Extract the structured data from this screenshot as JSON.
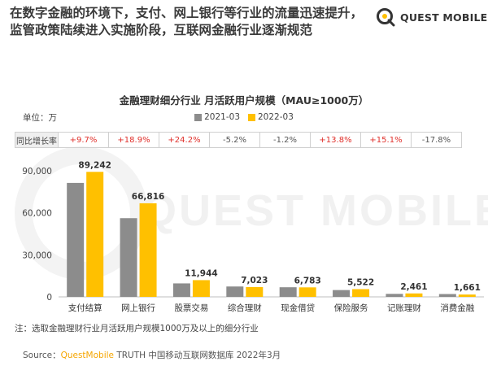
{
  "headline": {
    "line1": "在数字金融的环境下，支付、网上银行等行业的流量迅速提升，",
    "line2": "监管政策陆续进入实施阶段，互联网金融行业逐渐规范"
  },
  "brand": {
    "name": "QUEST MOBILE",
    "watermark": "QUEST MOBILE"
  },
  "colors": {
    "series_2021": "#8c8c8c",
    "series_2022": "#ffc000",
    "positive": "#e0302b",
    "negative": "#555555",
    "brand": "#f5a500"
  },
  "unit_label": "单位：万",
  "yoy": {
    "label": "同比增长率",
    "values": [
      "+9.7%",
      "+18.9%",
      "+24.2%",
      "-5.2%",
      "-1.2%",
      "+13.8%",
      "+15.1%",
      "-17.8%"
    ]
  },
  "chart_data": {
    "type": "bar",
    "title": "金融理财细分行业 月活跃用户规模（MAU≥1000万）",
    "categories": [
      "支付结算",
      "网上银行",
      "股票交易",
      "综合理财",
      "现金借贷",
      "保险服务",
      "记账理财",
      "消费金融"
    ],
    "series": [
      {
        "name": "2021-03",
        "values": [
          81350,
          56190,
          9617,
          7408,
          6865,
          4853,
          2138,
          2020
        ]
      },
      {
        "name": "2022-03",
        "values": [
          89242,
          66816,
          11944,
          7023,
          6783,
          5522,
          2461,
          1661
        ]
      }
    ],
    "data_labels": [
      "89,242",
      "66,816",
      "11,944",
      "7,023",
      "6,783",
      "5,522",
      "2,461",
      "1,661"
    ],
    "yticks": [
      "90,000",
      "60,000",
      "30,000",
      "0"
    ],
    "ytick_values": [
      90000,
      60000,
      30000,
      0
    ],
    "ylim": [
      0,
      90000
    ],
    "grid": false,
    "legend_position": "top-center"
  },
  "note": "注：选取金融理财行业月活跃用户规模1000万及以上的细分行业",
  "source": {
    "prefix": "Source：",
    "brand": "QuestMobile",
    "rest": " TRUTH 中国移动互联网数据库 2022年3月"
  }
}
